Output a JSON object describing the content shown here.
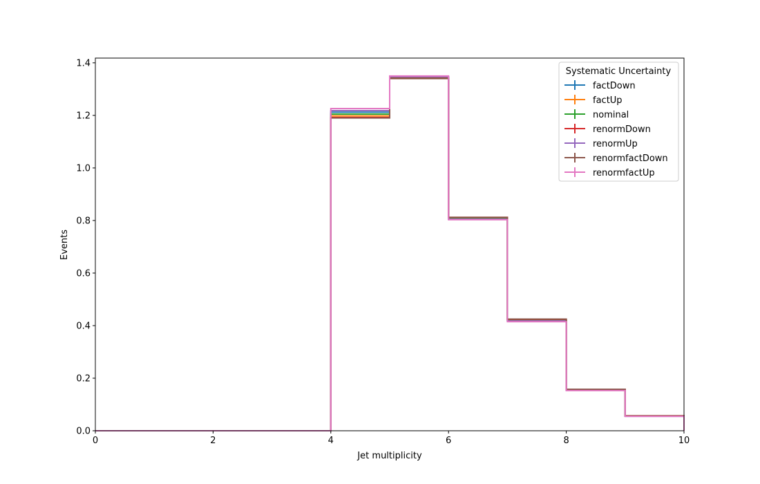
{
  "chart_data": {
    "type": "histogram-step",
    "title": "",
    "xlabel": "Jet multiplicity",
    "ylabel": "Events",
    "xlim": [
      0,
      10
    ],
    "ylim": [
      0,
      1.418
    ],
    "xticks": [
      0,
      2,
      4,
      6,
      8,
      10
    ],
    "xtick_labels": [
      "0",
      "2",
      "4",
      "6",
      "8",
      "10"
    ],
    "yticks": [
      0,
      0.2,
      0.4,
      0.6,
      0.8,
      1.0,
      1.2,
      1.4
    ],
    "ytick_labels": [
      "0.0",
      "0.2",
      "0.4",
      "0.6",
      "0.8",
      "1.0",
      "1.2",
      "1.4"
    ],
    "grid": false,
    "legend": {
      "title": "Systematic Uncertainty",
      "placement": "top-right"
    },
    "bin_edges": [
      0,
      1,
      2,
      3,
      4,
      5,
      6,
      7,
      8,
      9,
      10
    ],
    "series": [
      {
        "name": "factDown",
        "color": "#1f77b4",
        "values": [
          0,
          0,
          0,
          0,
          1.212,
          1.346,
          0.806,
          0.419,
          0.155,
          0.056
        ]
      },
      {
        "name": "factUp",
        "color": "#ff7f0e",
        "values": [
          0,
          0,
          0,
          0,
          1.198,
          1.341,
          0.811,
          0.423,
          0.157,
          0.057
        ]
      },
      {
        "name": "nominal",
        "color": "#2ca02c",
        "values": [
          0,
          0,
          0,
          0,
          1.205,
          1.343,
          0.808,
          0.421,
          0.156,
          0.056
        ]
      },
      {
        "name": "renormDown",
        "color": "#d62728",
        "values": [
          0,
          0,
          0,
          0,
          1.192,
          1.341,
          0.812,
          0.424,
          0.158,
          0.057
        ]
      },
      {
        "name": "renormUp",
        "color": "#9467bd",
        "values": [
          0,
          0,
          0,
          0,
          1.218,
          1.347,
          0.805,
          0.418,
          0.154,
          0.055
        ]
      },
      {
        "name": "renormfactDown",
        "color": "#8c564b",
        "values": [
          0,
          0,
          0,
          0,
          1.19,
          1.34,
          0.812,
          0.425,
          0.158,
          0.057
        ]
      },
      {
        "name": "renormfactUp",
        "color": "#e377c2",
        "values": [
          0,
          0,
          0,
          0,
          1.226,
          1.35,
          0.803,
          0.415,
          0.153,
          0.055
        ]
      }
    ]
  }
}
